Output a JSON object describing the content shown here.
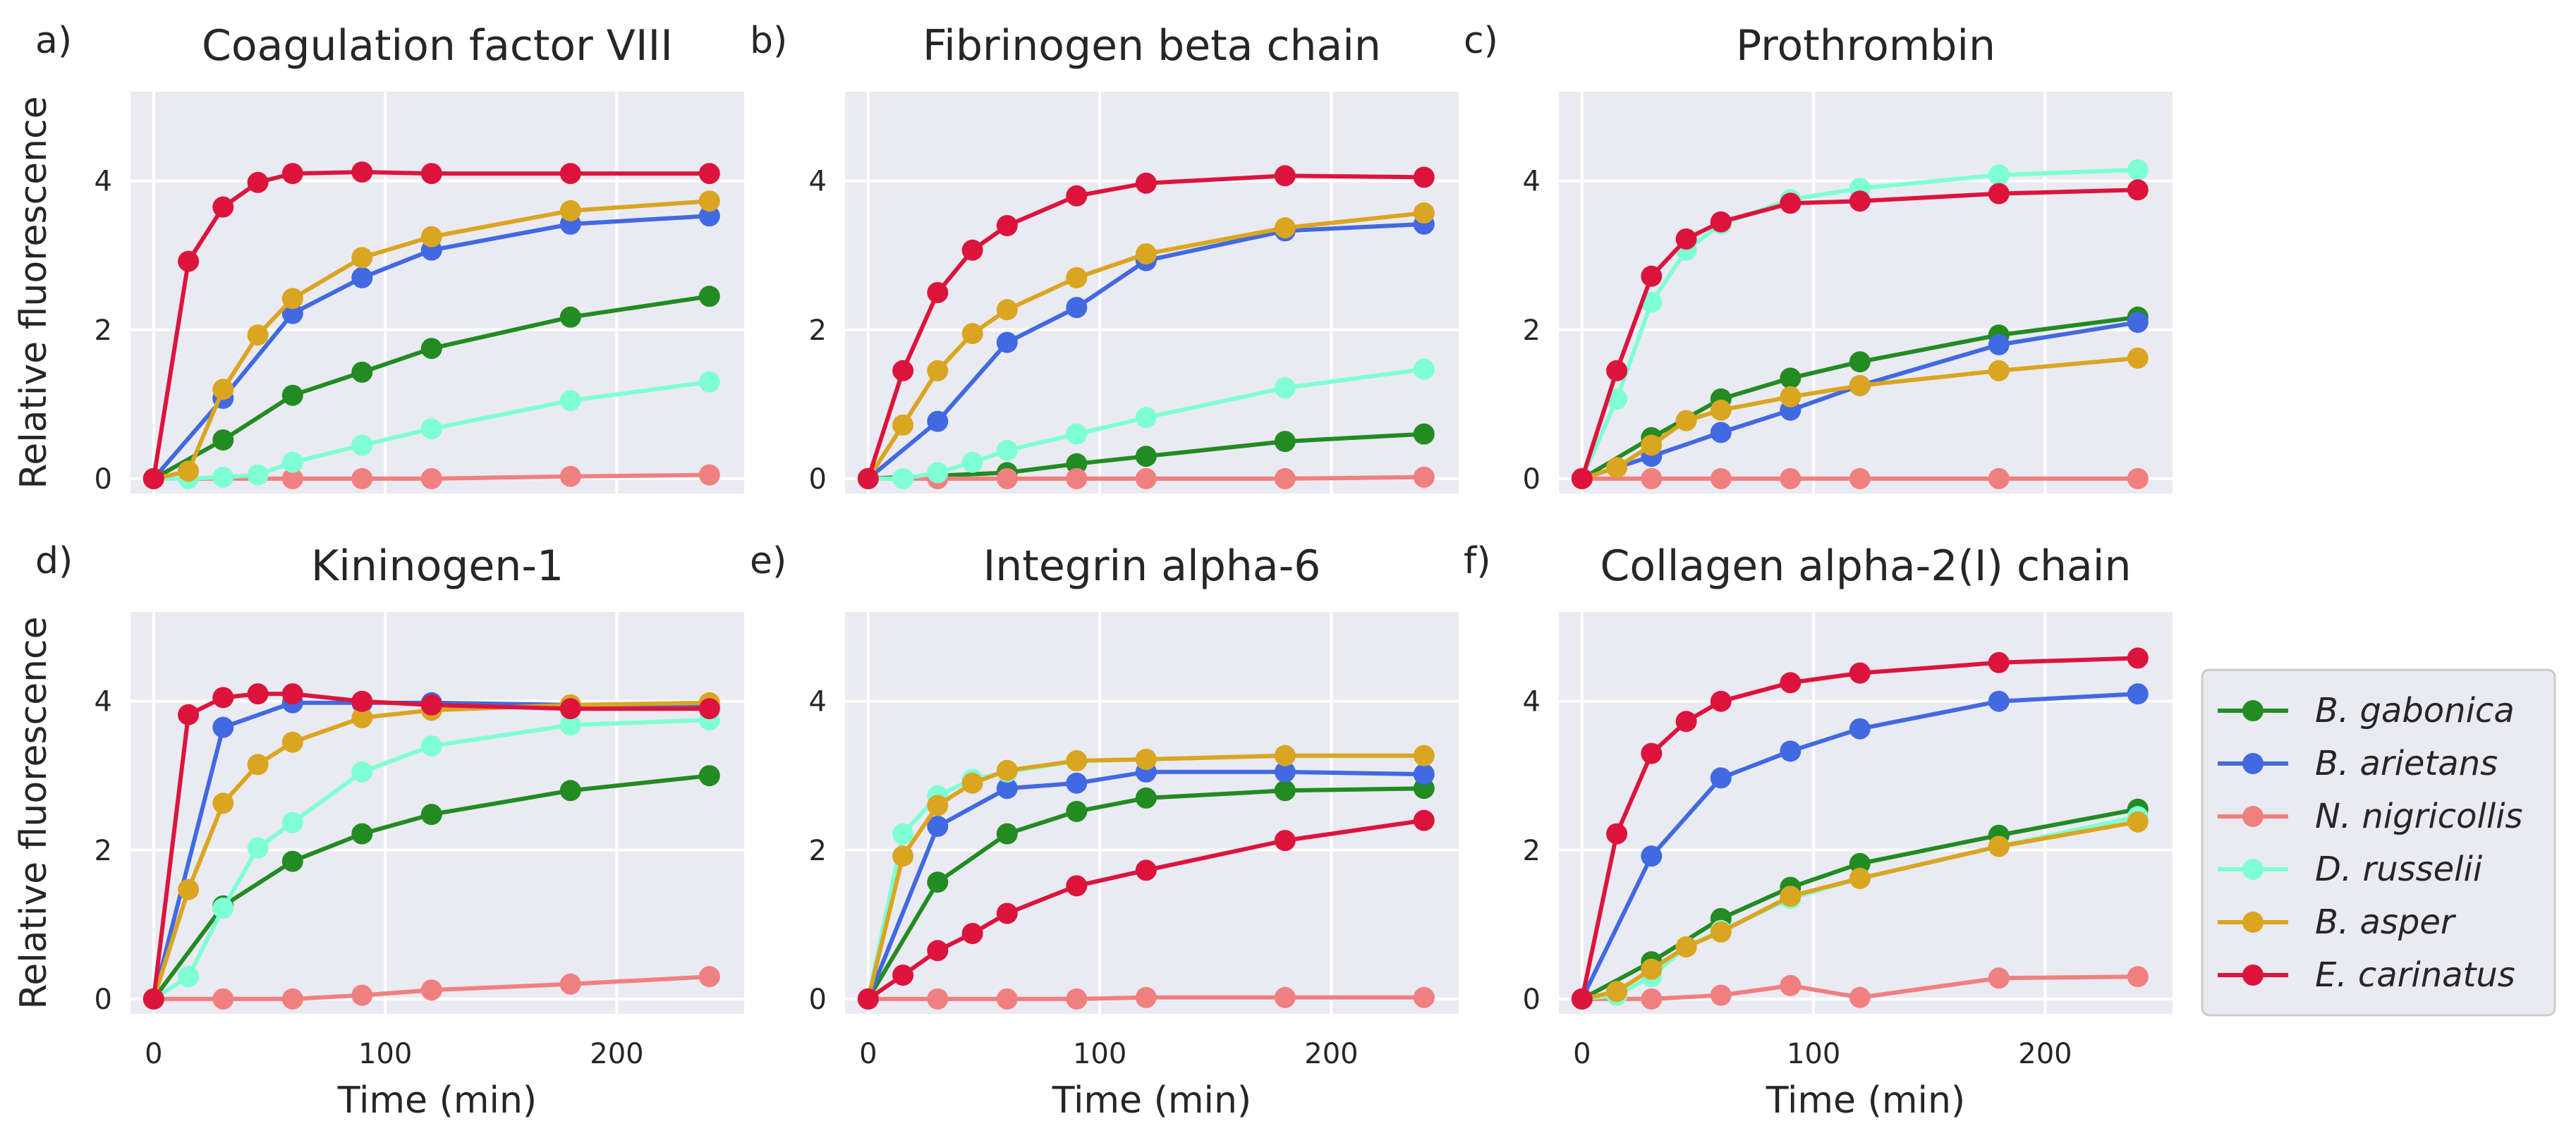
{
  "figure": {
    "x_label": "Time (min)",
    "y_label": "Relative fluorescence"
  },
  "legend": [
    {
      "key": "gabonica",
      "label": "B. gabonica",
      "color": "#228b22"
    },
    {
      "key": "arietans",
      "label": "B. arietans",
      "color": "#4169e1"
    },
    {
      "key": "nigricollis",
      "label": "N. nigricollis",
      "color": "#f08080"
    },
    {
      "key": "russelii",
      "label": "D. russelii",
      "color": "#7fffd4"
    },
    {
      "key": "asper",
      "label": "B. asper",
      "color": "#daa520"
    },
    {
      "key": "carinatus",
      "label": "E. carinatus",
      "color": "#dc143c"
    }
  ],
  "chart_data": [
    {
      "type": "line",
      "panel": "a)",
      "title": "Coagulation factor VIII",
      "xlabel": "",
      "ylabel": "Relative fluorescence",
      "xlim": [
        -10,
        255
      ],
      "ylim": [
        -0.2,
        5.2
      ],
      "xticks": [
        0,
        100,
        200
      ],
      "yticks": [
        0,
        2,
        4
      ],
      "x": [
        0,
        15,
        30,
        45,
        60,
        90,
        120,
        180,
        240
      ],
      "series": [
        {
          "key": "gabonica",
          "values": [
            0,
            null,
            0.52,
            null,
            1.12,
            1.43,
            1.75,
            2.17,
            2.45
          ]
        },
        {
          "key": "arietans",
          "values": [
            0,
            null,
            1.08,
            null,
            2.22,
            2.7,
            3.07,
            3.42,
            3.53
          ]
        },
        {
          "key": "nigricollis",
          "values": [
            0,
            null,
            null,
            null,
            0.0,
            0.0,
            0.0,
            0.03,
            0.05
          ]
        },
        {
          "key": "russelii",
          "values": [
            0,
            0.0,
            0.02,
            0.05,
            0.22,
            0.45,
            0.67,
            1.05,
            1.3
          ]
        },
        {
          "key": "asper",
          "values": [
            0,
            0.1,
            1.2,
            1.93,
            2.42,
            2.97,
            3.25,
            3.6,
            3.73
          ]
        },
        {
          "key": "carinatus",
          "values": [
            0,
            2.92,
            3.65,
            3.98,
            4.1,
            4.12,
            4.1,
            4.1,
            4.1
          ]
        }
      ]
    },
    {
      "type": "line",
      "panel": "b)",
      "title": "Fibrinogen beta chain",
      "xlabel": "",
      "ylabel": "",
      "xlim": [
        -10,
        255
      ],
      "ylim": [
        -0.2,
        5.2
      ],
      "xticks": [
        0,
        100,
        200
      ],
      "yticks": [
        0,
        2,
        4
      ],
      "x": [
        0,
        15,
        30,
        45,
        60,
        90,
        120,
        180,
        240
      ],
      "series": [
        {
          "key": "gabonica",
          "values": [
            0,
            null,
            null,
            null,
            0.08,
            0.2,
            0.3,
            0.5,
            0.6
          ]
        },
        {
          "key": "arietans",
          "values": [
            0,
            null,
            0.77,
            null,
            1.83,
            2.3,
            2.93,
            3.33,
            3.42
          ]
        },
        {
          "key": "nigricollis",
          "values": [
            0,
            null,
            0.0,
            null,
            0.0,
            0.0,
            0.0,
            0.0,
            0.02
          ]
        },
        {
          "key": "russelii",
          "values": [
            0,
            0.0,
            0.08,
            0.22,
            0.38,
            0.6,
            0.82,
            1.22,
            1.47
          ]
        },
        {
          "key": "asper",
          "values": [
            0,
            0.72,
            1.45,
            1.95,
            2.27,
            2.7,
            3.02,
            3.37,
            3.57
          ]
        },
        {
          "key": "carinatus",
          "values": [
            0,
            1.45,
            2.5,
            3.07,
            3.4,
            3.8,
            3.97,
            4.07,
            4.05
          ]
        }
      ]
    },
    {
      "type": "line",
      "panel": "c)",
      "title": "Prothrombin",
      "xlabel": "",
      "ylabel": "",
      "xlim": [
        -10,
        255
      ],
      "ylim": [
        -0.2,
        5.2
      ],
      "xticks": [
        0,
        100,
        200
      ],
      "yticks": [
        0,
        2,
        4
      ],
      "x": [
        0,
        15,
        30,
        45,
        60,
        90,
        120,
        180,
        240
      ],
      "series": [
        {
          "key": "gabonica",
          "values": [
            0,
            null,
            0.55,
            null,
            1.07,
            1.35,
            1.57,
            1.93,
            2.17
          ]
        },
        {
          "key": "arietans",
          "values": [
            0,
            null,
            0.3,
            null,
            0.62,
            0.92,
            1.25,
            1.8,
            2.1
          ]
        },
        {
          "key": "nigricollis",
          "values": [
            0,
            null,
            0.0,
            null,
            0.0,
            0.0,
            0.0,
            0.0,
            0.0
          ]
        },
        {
          "key": "russelii",
          "values": [
            0,
            1.07,
            2.37,
            3.07,
            3.42,
            3.75,
            3.9,
            4.08,
            4.15
          ]
        },
        {
          "key": "asper",
          "values": [
            0,
            0.15,
            0.45,
            0.78,
            0.92,
            1.1,
            1.25,
            1.45,
            1.62
          ]
        },
        {
          "key": "carinatus",
          "values": [
            0,
            1.45,
            2.72,
            3.22,
            3.45,
            3.7,
            3.73,
            3.83,
            3.88
          ]
        }
      ]
    },
    {
      "type": "line",
      "panel": "d)",
      "title": "Kininogen-1",
      "xlabel": "Time (min)",
      "ylabel": "Relative fluorescence",
      "xlim": [
        -10,
        255
      ],
      "ylim": [
        -0.2,
        5.2
      ],
      "xticks": [
        0,
        100,
        200
      ],
      "yticks": [
        0,
        2,
        4
      ],
      "x": [
        0,
        15,
        30,
        45,
        60,
        90,
        120,
        180,
        240
      ],
      "series": [
        {
          "key": "gabonica",
          "values": [
            0,
            null,
            1.25,
            null,
            1.85,
            2.22,
            2.48,
            2.8,
            3.0
          ]
        },
        {
          "key": "arietans",
          "values": [
            0,
            null,
            3.65,
            null,
            3.98,
            3.98,
            3.98,
            3.95,
            3.95
          ]
        },
        {
          "key": "nigricollis",
          "values": [
            0,
            null,
            0.0,
            null,
            0.0,
            0.05,
            0.12,
            0.2,
            0.3
          ]
        },
        {
          "key": "russelii",
          "values": [
            0,
            0.3,
            1.22,
            2.03,
            2.37,
            3.05,
            3.4,
            3.68,
            3.75
          ]
        },
        {
          "key": "asper",
          "values": [
            0,
            1.47,
            2.63,
            3.15,
            3.45,
            3.78,
            3.88,
            3.95,
            3.98
          ]
        },
        {
          "key": "carinatus",
          "values": [
            0,
            3.82,
            4.05,
            4.1,
            4.1,
            4.0,
            3.95,
            3.9,
            3.9
          ]
        }
      ]
    },
    {
      "type": "line",
      "panel": "e)",
      "title": "Integrin alpha-6",
      "xlabel": "Time (min)",
      "ylabel": "",
      "xlim": [
        -10,
        255
      ],
      "ylim": [
        -0.2,
        5.2
      ],
      "xticks": [
        0,
        100,
        200
      ],
      "yticks": [
        0,
        2,
        4
      ],
      "x": [
        0,
        15,
        30,
        45,
        60,
        90,
        120,
        180,
        240
      ],
      "series": [
        {
          "key": "gabonica",
          "values": [
            0,
            null,
            1.57,
            null,
            2.22,
            2.52,
            2.7,
            2.8,
            2.83
          ]
        },
        {
          "key": "arietans",
          "values": [
            0,
            null,
            2.32,
            null,
            2.83,
            2.9,
            3.05,
            3.05,
            3.02
          ]
        },
        {
          "key": "nigricollis",
          "values": [
            0,
            null,
            0.0,
            null,
            0.0,
            0.0,
            0.02,
            0.02,
            0.02
          ]
        },
        {
          "key": "russelii",
          "values": [
            0,
            2.22,
            2.73,
            2.95,
            3.05,
            3.2,
            3.22,
            3.27,
            3.27
          ]
        },
        {
          "key": "asper",
          "values": [
            0,
            1.92,
            2.6,
            2.9,
            3.07,
            3.2,
            3.22,
            3.27,
            3.27
          ]
        },
        {
          "key": "carinatus",
          "values": [
            0,
            0.32,
            0.65,
            0.88,
            1.15,
            1.52,
            1.73,
            2.13,
            2.4
          ]
        }
      ]
    },
    {
      "type": "line",
      "panel": "f)",
      "title": "Collagen alpha-2(I) chain",
      "xlabel": "Time (min)",
      "ylabel": "",
      "xlim": [
        -10,
        255
      ],
      "ylim": [
        -0.2,
        5.2
      ],
      "xticks": [
        0,
        100,
        200
      ],
      "yticks": [
        0,
        2,
        4
      ],
      "x": [
        0,
        15,
        30,
        45,
        60,
        90,
        120,
        180,
        240
      ],
      "series": [
        {
          "key": "gabonica",
          "values": [
            0,
            null,
            0.5,
            null,
            1.08,
            1.5,
            1.82,
            2.2,
            2.55
          ]
        },
        {
          "key": "arietans",
          "values": [
            0,
            null,
            1.92,
            null,
            2.97,
            3.33,
            3.63,
            4.0,
            4.1
          ]
        },
        {
          "key": "nigricollis",
          "values": [
            0,
            null,
            0.0,
            null,
            0.05,
            0.18,
            0.02,
            0.28,
            0.3
          ]
        },
        {
          "key": "russelii",
          "values": [
            0,
            0.05,
            0.3,
            0.7,
            0.92,
            1.35,
            1.62,
            2.05,
            2.45
          ]
        },
        {
          "key": "asper",
          "values": [
            0,
            0.1,
            0.4,
            0.7,
            0.9,
            1.38,
            1.62,
            2.05,
            2.38
          ]
        },
        {
          "key": "carinatus",
          "values": [
            0,
            2.22,
            3.3,
            3.73,
            4.0,
            4.25,
            4.38,
            4.52,
            4.58
          ]
        }
      ]
    }
  ]
}
